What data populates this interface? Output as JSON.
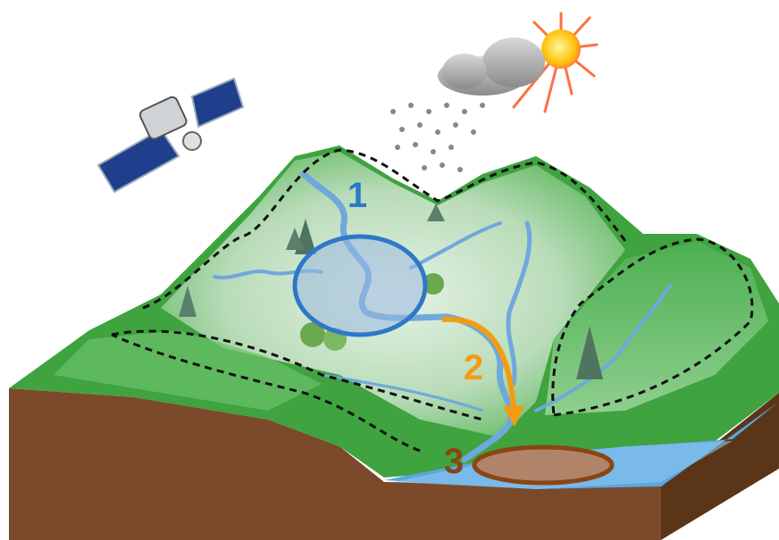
{
  "markers": [
    {
      "label": "1"
    },
    {
      "label": "2"
    },
    {
      "label": "3"
    }
  ]
}
